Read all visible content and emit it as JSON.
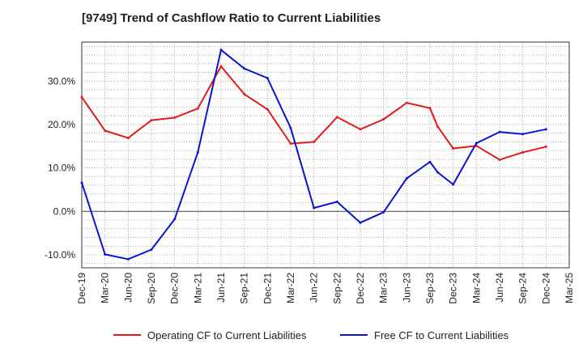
{
  "chart_data": {
    "type": "line",
    "title": "[9749]  Trend of Cashflow Ratio to Current Liabilities",
    "xlabel": "",
    "ylabel": "",
    "ylim": [
      -13,
      39
    ],
    "y_ticks": [
      -10,
      0,
      10,
      20,
      30
    ],
    "y_tick_labels": [
      "-10.0%",
      "0.0%",
      "10.0%",
      "20.0%",
      "30.0%"
    ],
    "x_tick_labels": [
      "Dec-19",
      "Mar-20",
      "Jun-20",
      "Sep-20",
      "Dec-20",
      "Mar-21",
      "Jun-21",
      "Sep-21",
      "Dec-21",
      "Mar-22",
      "Jun-22",
      "Sep-22",
      "Dec-22",
      "Mar-23",
      "Jun-23",
      "Sep-23",
      "Dec-23",
      "Mar-24",
      "Jun-24",
      "Sep-24",
      "Dec-24",
      "Mar-25"
    ],
    "grid": true,
    "legend_position": "bottom",
    "series": [
      {
        "name": "Operating CF to Current Liabilities",
        "color": "#e31a1c",
        "points": [
          [
            "Dec-19",
            26.3
          ],
          [
            "Mar-20",
            18.6
          ],
          [
            "Jun-20",
            16.9
          ],
          [
            "Sep-20",
            21.0
          ],
          [
            "Dec-20",
            21.6
          ],
          [
            "Mar-21",
            23.7
          ],
          [
            "Jun-21",
            33.4
          ],
          [
            "Sep-21",
            27.0
          ],
          [
            "Dec-21",
            23.5
          ],
          [
            "Mar-22",
            15.6
          ],
          [
            "Jun-22",
            16.0
          ],
          [
            "Sep-22",
            21.7
          ],
          [
            "Dec-22",
            18.9
          ],
          [
            "Mar-23",
            21.2
          ],
          [
            "Jun-23",
            25.0
          ],
          [
            "Sep-23",
            23.8
          ],
          [
            "Oct-23",
            19.5
          ],
          [
            "Dec-23",
            14.5
          ],
          [
            "Mar-24",
            15.1
          ],
          [
            "Jun-24",
            11.9
          ],
          [
            "Sep-24",
            13.6
          ],
          [
            "Dec-24",
            14.9
          ]
        ]
      },
      {
        "name": "Free CF to Current Liabilities",
        "color": "#0a14d2",
        "points": [
          [
            "Dec-19",
            6.6
          ],
          [
            "Mar-20",
            -9.9
          ],
          [
            "Jun-20",
            -11.0
          ],
          [
            "Sep-20",
            -8.8
          ],
          [
            "Dec-20",
            -1.8
          ],
          [
            "Mar-21",
            13.6
          ],
          [
            "Jun-21",
            37.2
          ],
          [
            "Sep-21",
            32.9
          ],
          [
            "Dec-21",
            30.7
          ],
          [
            "Mar-22",
            19.2
          ],
          [
            "Jun-22",
            0.8
          ],
          [
            "Sep-22",
            2.2
          ],
          [
            "Dec-22",
            -2.6
          ],
          [
            "Mar-23",
            -0.2
          ],
          [
            "Jun-23",
            7.6
          ],
          [
            "Sep-23",
            11.4
          ],
          [
            "Oct-23",
            9.0
          ],
          [
            "Dec-23",
            6.2
          ],
          [
            "Mar-24",
            15.7
          ],
          [
            "Jun-24",
            18.3
          ],
          [
            "Sep-24",
            17.8
          ],
          [
            "Dec-24",
            18.9
          ]
        ]
      }
    ]
  }
}
